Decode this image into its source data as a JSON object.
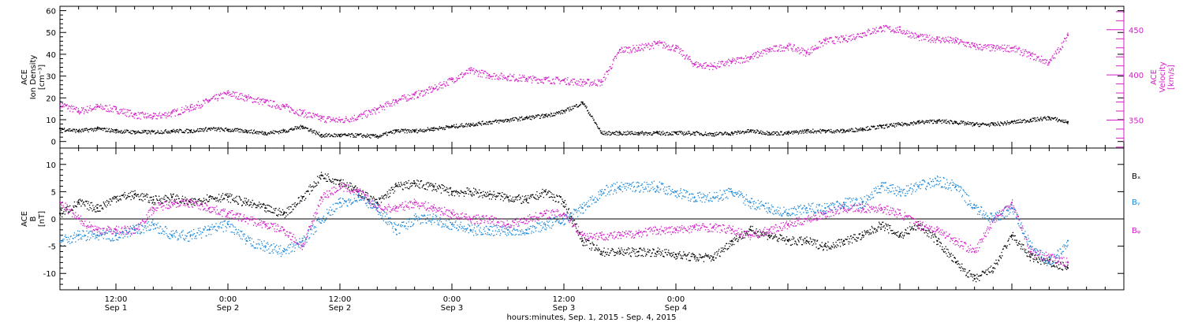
{
  "chart_data": [
    {
      "type": "scatter",
      "panel": "top",
      "left_axis_label": [
        "ACE",
        "Ion Density",
        "[cm⁻³]"
      ],
      "right_axis_label": [
        "ACE",
        "Velocity",
        "[km/s]"
      ],
      "left_ylim": [
        -3,
        62
      ],
      "left_ticks": [
        0,
        10,
        20,
        30,
        40,
        50,
        60
      ],
      "right_ylim": [
        319,
        476
      ],
      "right_ticks": [
        350,
        400,
        450
      ],
      "right_axis_color": "#d21fc6",
      "xlim": [
        0,
        114
      ],
      "series": [
        {
          "name": "Density",
          "color": "#000000",
          "axis": "left",
          "x": [
            0,
            2,
            4,
            6,
            8,
            10,
            12,
            14,
            16,
            18,
            20,
            22,
            24,
            26,
            28,
            30,
            32,
            34,
            36,
            38,
            40,
            42,
            44,
            46,
            48,
            50,
            52,
            54,
            56,
            58,
            60,
            62,
            64,
            66,
            68,
            70,
            72,
            74,
            76,
            78,
            80,
            82,
            84,
            86,
            88,
            90,
            92,
            94,
            96,
            98,
            100,
            102,
            104,
            106,
            108
          ],
          "y": [
            6,
            5,
            6,
            5,
            4.5,
            4.5,
            5,
            5,
            6,
            5.5,
            5,
            4,
            5,
            7,
            3,
            3,
            3,
            2.5,
            5,
            5,
            6,
            7,
            8,
            9,
            10,
            11,
            12,
            14,
            18,
            4,
            4,
            4,
            4,
            4,
            4,
            3.5,
            4,
            5,
            4,
            4,
            5,
            5,
            5,
            6,
            7,
            8,
            9,
            9.5,
            9,
            8,
            8,
            9,
            10,
            11,
            9
          ]
        },
        {
          "name": "Velocity",
          "color": "#d21fc6",
          "axis": "right",
          "x": [
            0,
            2,
            4,
            6,
            8,
            10,
            12,
            14,
            16,
            18,
            20,
            22,
            24,
            26,
            28,
            30,
            32,
            34,
            36,
            38,
            40,
            42,
            44,
            46,
            48,
            50,
            52,
            54,
            56,
            58,
            60,
            62,
            64,
            66,
            68,
            70,
            72,
            74,
            76,
            78,
            80,
            82,
            84,
            86,
            88,
            90,
            92,
            94,
            96,
            98,
            100,
            102,
            104,
            106,
            108
          ],
          "y": [
            368,
            360,
            365,
            362,
            356,
            354,
            358,
            364,
            372,
            380,
            375,
            370,
            365,
            358,
            352,
            350,
            354,
            362,
            372,
            378,
            385,
            395,
            405,
            400,
            398,
            396,
            395,
            394,
            392,
            392,
            428,
            430,
            435,
            430,
            412,
            410,
            415,
            420,
            428,
            432,
            425,
            438,
            440,
            446,
            452,
            450,
            442,
            440,
            438,
            432,
            430,
            430,
            422,
            414,
            444
          ]
        }
      ]
    },
    {
      "type": "scatter",
      "panel": "bottom",
      "left_axis_label": [
        "ACE",
        "B",
        "[nT]"
      ],
      "ylim": [
        -13,
        13
      ],
      "yticks": [
        -10,
        -5,
        0,
        5,
        10
      ],
      "xlim": [
        0,
        114
      ],
      "series": [
        {
          "name": "Bx",
          "legend_label": "Bₓ",
          "color": "#000000",
          "x": [
            0,
            2,
            4,
            6,
            8,
            10,
            12,
            14,
            16,
            18,
            20,
            22,
            24,
            26,
            28,
            30,
            32,
            34,
            36,
            38,
            40,
            42,
            44,
            46,
            48,
            50,
            52,
            54,
            56,
            58,
            60,
            62,
            64,
            66,
            68,
            70,
            72,
            74,
            76,
            78,
            80,
            82,
            84,
            86,
            88,
            90,
            92,
            94,
            96,
            98,
            100,
            102,
            104,
            106,
            108
          ],
          "y": [
            1,
            3,
            2,
            4,
            4.5,
            3.5,
            4,
            3,
            4,
            4,
            3,
            2,
            1,
            4,
            8,
            7,
            5,
            3,
            6,
            6.5,
            6,
            5,
            5,
            4.5,
            4,
            3.5,
            5,
            3,
            -4,
            -6,
            -6,
            -6,
            -6,
            -6.5,
            -7,
            -7,
            -4,
            -2,
            -3,
            -4,
            -4,
            -5,
            -4,
            -3,
            -1,
            -3,
            -1,
            -4,
            -8,
            -11,
            -9,
            -3,
            -7,
            -8,
            -9
          ]
        },
        {
          "name": "By",
          "legend_label": "Bᵧ",
          "color": "#1e88d8",
          "x": [
            0,
            2,
            4,
            6,
            8,
            10,
            12,
            14,
            16,
            18,
            20,
            22,
            24,
            26,
            28,
            30,
            32,
            34,
            36,
            38,
            40,
            42,
            44,
            46,
            48,
            50,
            52,
            54,
            56,
            58,
            60,
            62,
            64,
            66,
            68,
            70,
            72,
            74,
            76,
            78,
            80,
            82,
            84,
            86,
            88,
            90,
            92,
            94,
            96,
            98,
            100,
            102,
            104,
            106,
            108
          ],
          "y": [
            -4,
            -3,
            -3,
            -3,
            -2,
            -1,
            -3,
            -3,
            -2,
            -1,
            -4,
            -5,
            -6,
            -4,
            0,
            3,
            4,
            2,
            -2,
            0,
            0,
            -1,
            -2,
            -2,
            -2,
            -2,
            -1,
            0,
            2,
            5,
            6,
            6,
            6,
            5,
            4,
            4,
            5,
            3,
            2,
            1,
            2,
            2,
            3,
            3,
            6,
            5,
            6,
            7,
            6,
            2,
            0,
            2,
            -5,
            -8,
            -4
          ]
        },
        {
          "name": "Bz",
          "legend_label": "Bᵩ",
          "color": "#d21fc6",
          "x": [
            0,
            2,
            4,
            6,
            8,
            10,
            12,
            14,
            16,
            18,
            20,
            22,
            24,
            26,
            28,
            30,
            32,
            34,
            36,
            38,
            40,
            42,
            44,
            46,
            48,
            50,
            52,
            54,
            56,
            58,
            60,
            62,
            64,
            66,
            68,
            70,
            72,
            74,
            76,
            78,
            80,
            82,
            84,
            86,
            88,
            90,
            92,
            94,
            96,
            98,
            100,
            102,
            104,
            106,
            108
          ],
          "y": [
            3,
            0,
            -2,
            -2,
            -2,
            2,
            3,
            3,
            2,
            1,
            0,
            -1,
            -2,
            -5,
            4,
            6,
            5,
            2,
            2,
            3,
            2,
            1,
            0,
            0,
            -1,
            0,
            1,
            1,
            -3,
            -3,
            -3,
            -2.5,
            -2,
            -2,
            -1.5,
            -1.5,
            -2,
            -3,
            -2,
            -1,
            0,
            1,
            2,
            2,
            2,
            1,
            -1,
            -2,
            -4,
            -6,
            0,
            3,
            -6,
            -7,
            -8
          ]
        }
      ]
    }
  ],
  "x_axis": {
    "ticks": [
      {
        "x": 6,
        "hour": "12:00",
        "day": "Sep 1"
      },
      {
        "x": 18,
        "hour": "0:00",
        "day": "Sep 2"
      },
      {
        "x": 30,
        "hour": "12:00",
        "day": "Sep 2"
      },
      {
        "x": 42,
        "hour": "0:00",
        "day": "Sep 3"
      },
      {
        "x": 54,
        "hour": "12:00",
        "day": "Sep 3"
      },
      {
        "x": 66,
        "hour": "0:00",
        "day": "Sep 4"
      }
    ],
    "title": "hours:minutes, Sep.  1, 2015 - Sep.  4, 2015"
  }
}
